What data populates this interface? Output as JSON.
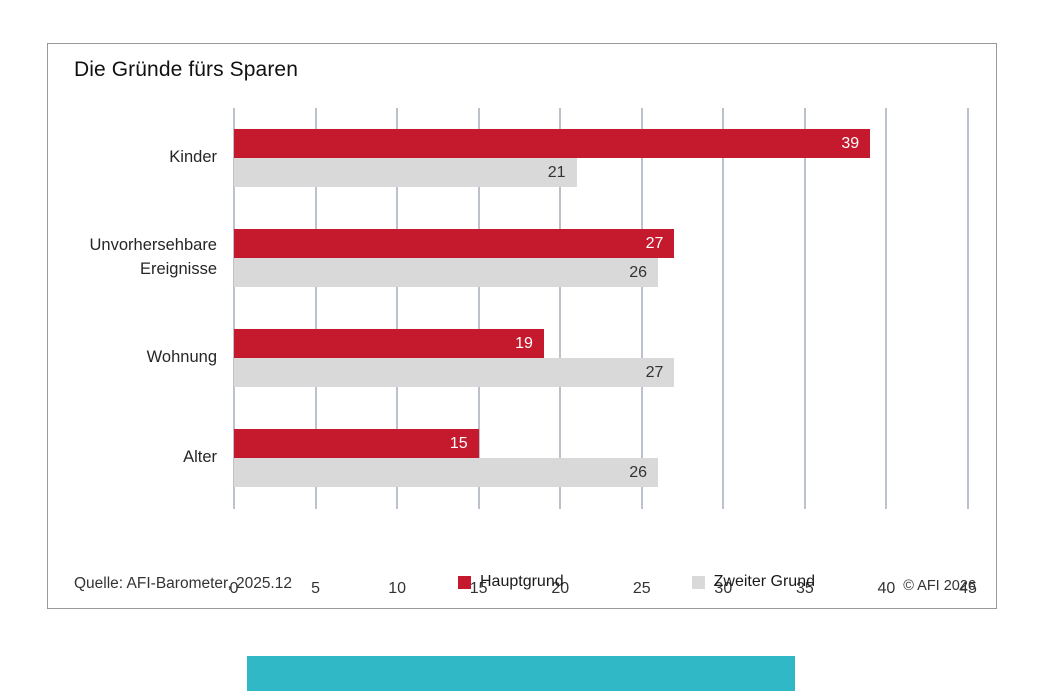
{
  "chart_data": {
    "type": "bar",
    "orientation": "horizontal",
    "title": "Die Gründe fürs Sparen",
    "categories": [
      "Kinder",
      "Unvorhersehbare Ereignisse",
      "Wohnung",
      "Alter"
    ],
    "series": [
      {
        "name": "Hauptgrund",
        "color": "#c5192d",
        "text_color": "#ffffff",
        "values": [
          39,
          27,
          19,
          15
        ]
      },
      {
        "name": "Zweiter Grund",
        "color": "#d9d9d9",
        "text_color": "#333333",
        "values": [
          21,
          26,
          27,
          26
        ]
      }
    ],
    "xlim": [
      0,
      45
    ],
    "xticks": [
      0,
      5,
      10,
      15,
      20,
      25,
      30,
      35,
      40,
      45
    ],
    "grid": "vertical",
    "legend_position": "bottom"
  },
  "footer": {
    "source": "Quelle: AFI-Barometer, 2025.12",
    "copyright": "© AFI 2026"
  },
  "colors": {
    "main_series": "#c5192d",
    "second_series": "#d9d9d9",
    "gridline": "#bcc2cb",
    "card_border": "#999999",
    "accent_bar": "#31b8c6"
  }
}
